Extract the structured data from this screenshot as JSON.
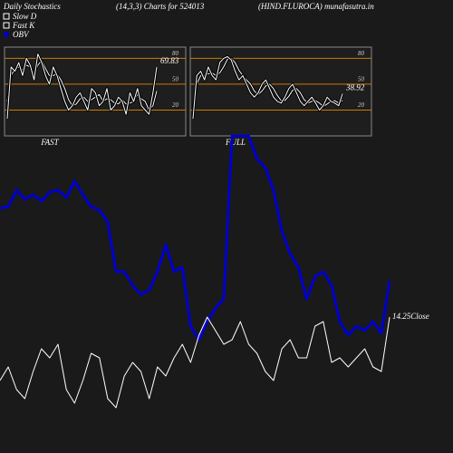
{
  "header": {
    "left": "Daily Stochastics",
    "center": "(14,3,3) Charts for 524013",
    "right": "(HIND.FLUROCA) munafasutra.in"
  },
  "chart_data": [
    {
      "type": "line",
      "title": "FAST",
      "ylim": [
        -10,
        93
      ],
      "yticks": [
        20,
        50,
        80
      ],
      "series": [
        {
          "name": "Slow D",
          "color": "#ffffff",
          "values": [
            30,
            60,
            68,
            70,
            67,
            72,
            70,
            62,
            72,
            78,
            68,
            60,
            60,
            62,
            55,
            45,
            32,
            25,
            27,
            33,
            35,
            30,
            32,
            35,
            38,
            30,
            33,
            32,
            28,
            27,
            32,
            27,
            28,
            30,
            38,
            33,
            30,
            20,
            25,
            42
          ]
        },
        {
          "name": "Fast K",
          "color": "#ffffff",
          "values": [
            10,
            70,
            65,
            75,
            60,
            80,
            72,
            55,
            85,
            75,
            60,
            50,
            70,
            60,
            45,
            30,
            20,
            25,
            35,
            40,
            30,
            20,
            45,
            40,
            25,
            30,
            45,
            20,
            25,
            35,
            30,
            15,
            40,
            30,
            45,
            25,
            20,
            15,
            40,
            69.83
          ]
        }
      ]
    },
    {
      "type": "line",
      "title": "FULL",
      "ylim": [
        -10,
        93
      ],
      "yticks": [
        20,
        50,
        80
      ],
      "series": [
        {
          "color": "#ffffff",
          "values": [
            20,
            50,
            60,
            60,
            62,
            63,
            60,
            63,
            70,
            79,
            80,
            75,
            66,
            60,
            55,
            50,
            42,
            38,
            42,
            48,
            50,
            45,
            37,
            31,
            31,
            36,
            43,
            45,
            40,
            32,
            28,
            30,
            31,
            28,
            24,
            27,
            30,
            31,
            28,
            31
          ]
        },
        {
          "color": "#ffffff",
          "values": [
            10,
            60,
            65,
            55,
            70,
            60,
            55,
            75,
            80,
            82,
            78,
            65,
            55,
            60,
            50,
            40,
            35,
            40,
            50,
            55,
            45,
            35,
            30,
            28,
            35,
            45,
            50,
            40,
            30,
            25,
            30,
            35,
            28,
            20,
            25,
            35,
            30,
            28,
            25,
            38.92
          ]
        }
      ]
    },
    {
      "type": "line",
      "ylim": [
        0,
        100
      ],
      "y2lim": [
        11.45,
        18.25
      ],
      "series": [
        {
          "name": "OBV",
          "color": "#0000cc",
          "values": [
            76.5,
            77.1,
            82.4,
            79.4,
            80.9,
            78.8,
            81.8,
            82.4,
            80,
            85.3,
            80.9,
            77.1,
            75.9,
            72.1,
            55.9,
            55.9,
            51.5,
            48.5,
            50,
            55.9,
            64.7,
            55.9,
            57.4,
            38.2,
            33.8,
            39.7,
            44.1,
            47.1,
            100,
            100,
            100,
            92.6,
            89.7,
            82.4,
            69.1,
            61.8,
            57.4,
            47.1,
            54.4,
            55.9,
            51.5,
            39.7,
            35.3,
            38.2,
            36.8,
            39.7,
            35.9,
            52.9
          ]
        },
        {
          "name": "Close",
          "color": "#ffffff",
          "axis": "y2",
          "values": [
            12.85,
            13.15,
            12.65,
            12.45,
            13.05,
            13.55,
            13.35,
            13.65,
            12.65,
            12.35,
            12.85,
            13.45,
            13.35,
            12.45,
            12.25,
            12.95,
            13.25,
            13.05,
            12.45,
            13.15,
            12.95,
            13.35,
            13.65,
            13.25,
            13.85,
            14.25,
            13.95,
            13.65,
            13.75,
            14.15,
            13.65,
            13.45,
            13.05,
            12.85,
            13.55,
            13.75,
            13.35,
            13.35,
            14.05,
            14.15,
            13.25,
            13.35,
            13.15,
            13.35,
            13.55,
            13.15,
            13.05,
            14.25
          ]
        }
      ]
    }
  ]
}
